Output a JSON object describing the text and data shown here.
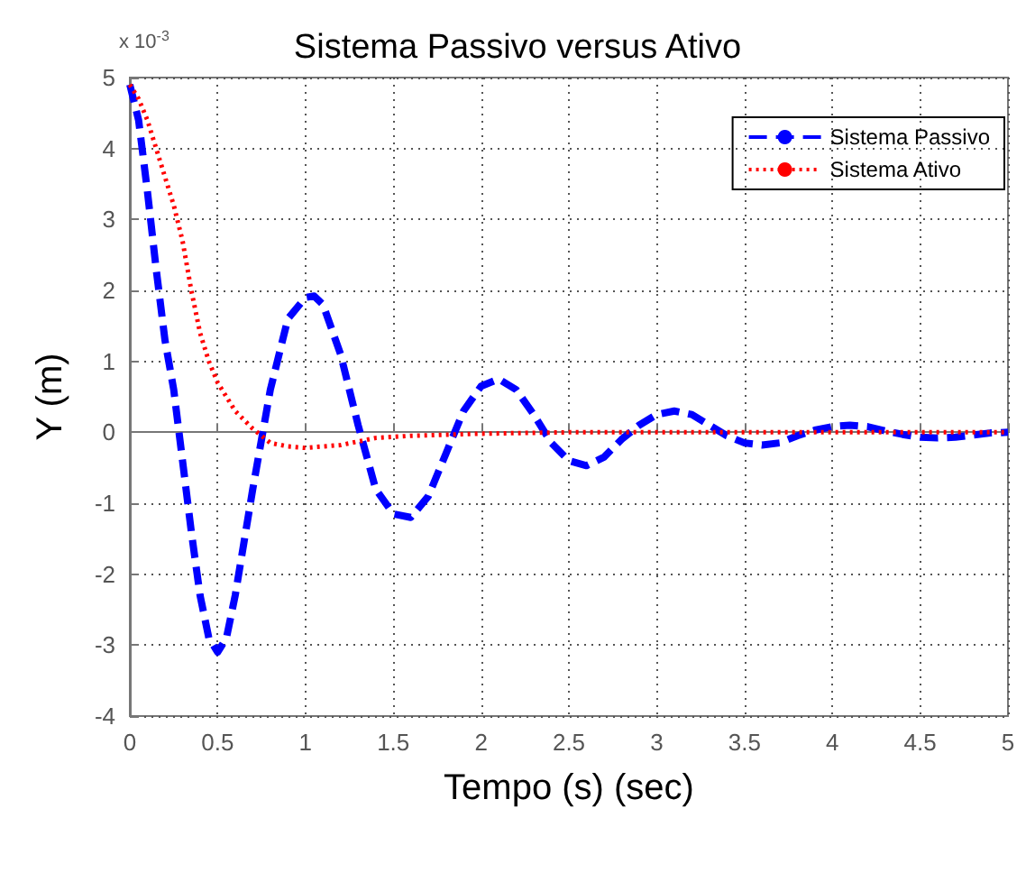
{
  "chart_data": {
    "type": "line",
    "title": "Sistema Passivo versus Ativo",
    "xlabel": "Tempo (s) (sec)",
    "ylabel": "Y (m)",
    "annotations": [
      "x 10$^{-3}$"
    ],
    "xlim": [
      0,
      5
    ],
    "xticks": [
      0,
      0.5,
      1,
      1.5,
      2,
      2.5,
      3,
      3.5,
      4,
      4.5,
      5
    ],
    "ylim": [
      -4,
      5
    ],
    "yticks": [
      -4,
      -3,
      -2,
      -1,
      0,
      1,
      2,
      3,
      4,
      5
    ],
    "grid": true,
    "legend": "top right",
    "marker": "none",
    "series": [
      {
        "name": "Sistema Passivo",
        "color": "#0000ff",
        "line_style": "dashed",
        "x": [
          0,
          0.05,
          0.1,
          0.15,
          0.2,
          0.25,
          0.3,
          0.35,
          0.4,
          0.45,
          0.5,
          0.55,
          0.6,
          0.7,
          0.8,
          0.9,
          1.0,
          1.05,
          1.1,
          1.2,
          1.3,
          1.4,
          1.5,
          1.6,
          1.7,
          1.8,
          1.9,
          2.0,
          2.1,
          2.2,
          2.3,
          2.4,
          2.5,
          2.6,
          2.7,
          2.8,
          2.9,
          3.0,
          3.1,
          3.2,
          3.3,
          3.4,
          3.5,
          3.6,
          3.7,
          3.8,
          3.9,
          4.0,
          4.1,
          4.2,
          4.3,
          4.4,
          4.5,
          4.6,
          4.7,
          4.8,
          4.9,
          5.0
        ],
        "values": [
          4.9,
          4.4,
          3.4,
          2.3,
          1.3,
          0.6,
          -0.4,
          -1.4,
          -2.3,
          -2.9,
          -3.1,
          -2.9,
          -2.3,
          -0.8,
          0.6,
          1.6,
          1.9,
          1.92,
          1.8,
          1.1,
          0.1,
          -0.8,
          -1.15,
          -1.2,
          -0.9,
          -0.3,
          0.3,
          0.65,
          0.75,
          0.6,
          0.25,
          -0.15,
          -0.4,
          -0.47,
          -0.35,
          -0.1,
          0.1,
          0.25,
          0.3,
          0.25,
          0.1,
          -0.05,
          -0.15,
          -0.18,
          -0.15,
          -0.05,
          0.03,
          0.08,
          0.1,
          0.08,
          0.02,
          -0.03,
          -0.07,
          -0.08,
          -0.07,
          -0.04,
          -0.01,
          0
        ]
      },
      {
        "name": "Sistema Ativo",
        "color": "#ff0000",
        "line_style": "dotted",
        "x": [
          0,
          0.05,
          0.1,
          0.15,
          0.2,
          0.25,
          0.3,
          0.35,
          0.4,
          0.45,
          0.5,
          0.6,
          0.7,
          0.75,
          0.8,
          0.9,
          1.0,
          1.2,
          1.4,
          1.6,
          2.0,
          2.5,
          3,
          4,
          5
        ],
        "values": [
          4.9,
          4.7,
          4.4,
          4.0,
          3.6,
          3.2,
          2.7,
          2.0,
          1.4,
          1.0,
          0.7,
          0.3,
          0.05,
          -0.05,
          -0.15,
          -0.2,
          -0.22,
          -0.18,
          -0.08,
          -0.05,
          -0.02,
          0,
          0,
          0,
          0
        ]
      }
    ]
  }
}
